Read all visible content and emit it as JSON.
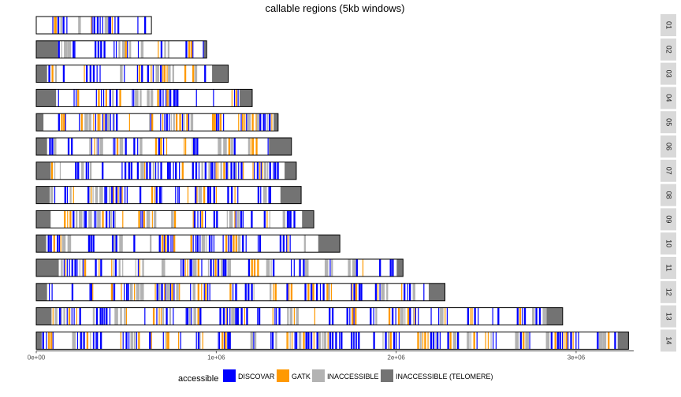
{
  "chart_data": {
    "type": "bar",
    "title": "callable regions (5kb windows)",
    "xlabel": "",
    "ylabel": "",
    "xlim": [
      0,
      3320000
    ],
    "x_ticks": [
      {
        "value": 0,
        "label": "0e+00"
      },
      {
        "value": 1000000,
        "label": "1e+06"
      },
      {
        "value": 2000000,
        "label": "2e+06"
      },
      {
        "value": 3000000,
        "label": "3e+06"
      }
    ],
    "grid": false,
    "legend": {
      "title": "accessible",
      "position": "bottom",
      "entries": [
        {
          "key": "DISCOVAR",
          "label": "DISCOVAR",
          "color": "#0000ff"
        },
        {
          "key": "GATK",
          "label": "GATK",
          "color": "#ff9900"
        },
        {
          "key": "INACCESSIBLE",
          "label": "INACCESSIBLE",
          "color": "#b3b3b3"
        },
        {
          "key": "TELOMERE",
          "label": "INACCESSIBLE (TELOMERE)",
          "color": "#737373"
        }
      ]
    },
    "window_size": 5000,
    "chromosomes": [
      {
        "label": "01",
        "length": 640000,
        "telomere_left": 0,
        "telomere_right": 0
      },
      {
        "label": "02",
        "length": 947000,
        "telomere_left": 120000,
        "telomere_right": 20000
      },
      {
        "label": "03",
        "length": 1067000,
        "telomere_left": 60000,
        "telomere_right": 90000
      },
      {
        "label": "04",
        "length": 1200000,
        "telomere_left": 110000,
        "telomere_right": 70000
      },
      {
        "label": "05",
        "length": 1344000,
        "telomere_left": 40000,
        "telomere_right": 25000
      },
      {
        "label": "06",
        "length": 1418000,
        "telomere_left": 60000,
        "telomere_right": 125000
      },
      {
        "label": "07",
        "length": 1445000,
        "telomere_left": 80000,
        "telomere_right": 65000
      },
      {
        "label": "08",
        "length": 1472000,
        "telomere_left": 75000,
        "telomere_right": 115000
      },
      {
        "label": "09",
        "length": 1542000,
        "telomere_left": 80000,
        "telomere_right": 65000
      },
      {
        "label": "10",
        "length": 1687000,
        "telomere_left": 55000,
        "telomere_right": 120000
      },
      {
        "label": "11",
        "length": 2038000,
        "telomere_left": 125000,
        "telomere_right": 35000
      },
      {
        "label": "12",
        "length": 2271000,
        "telomere_left": 60000,
        "telomere_right": 90000
      },
      {
        "label": "13",
        "length": 2925000,
        "telomere_left": 85000,
        "telomere_right": 90000
      },
      {
        "label": "14",
        "length": 3291000,
        "telomere_left": 30000,
        "telomere_right": 60000
      }
    ]
  }
}
